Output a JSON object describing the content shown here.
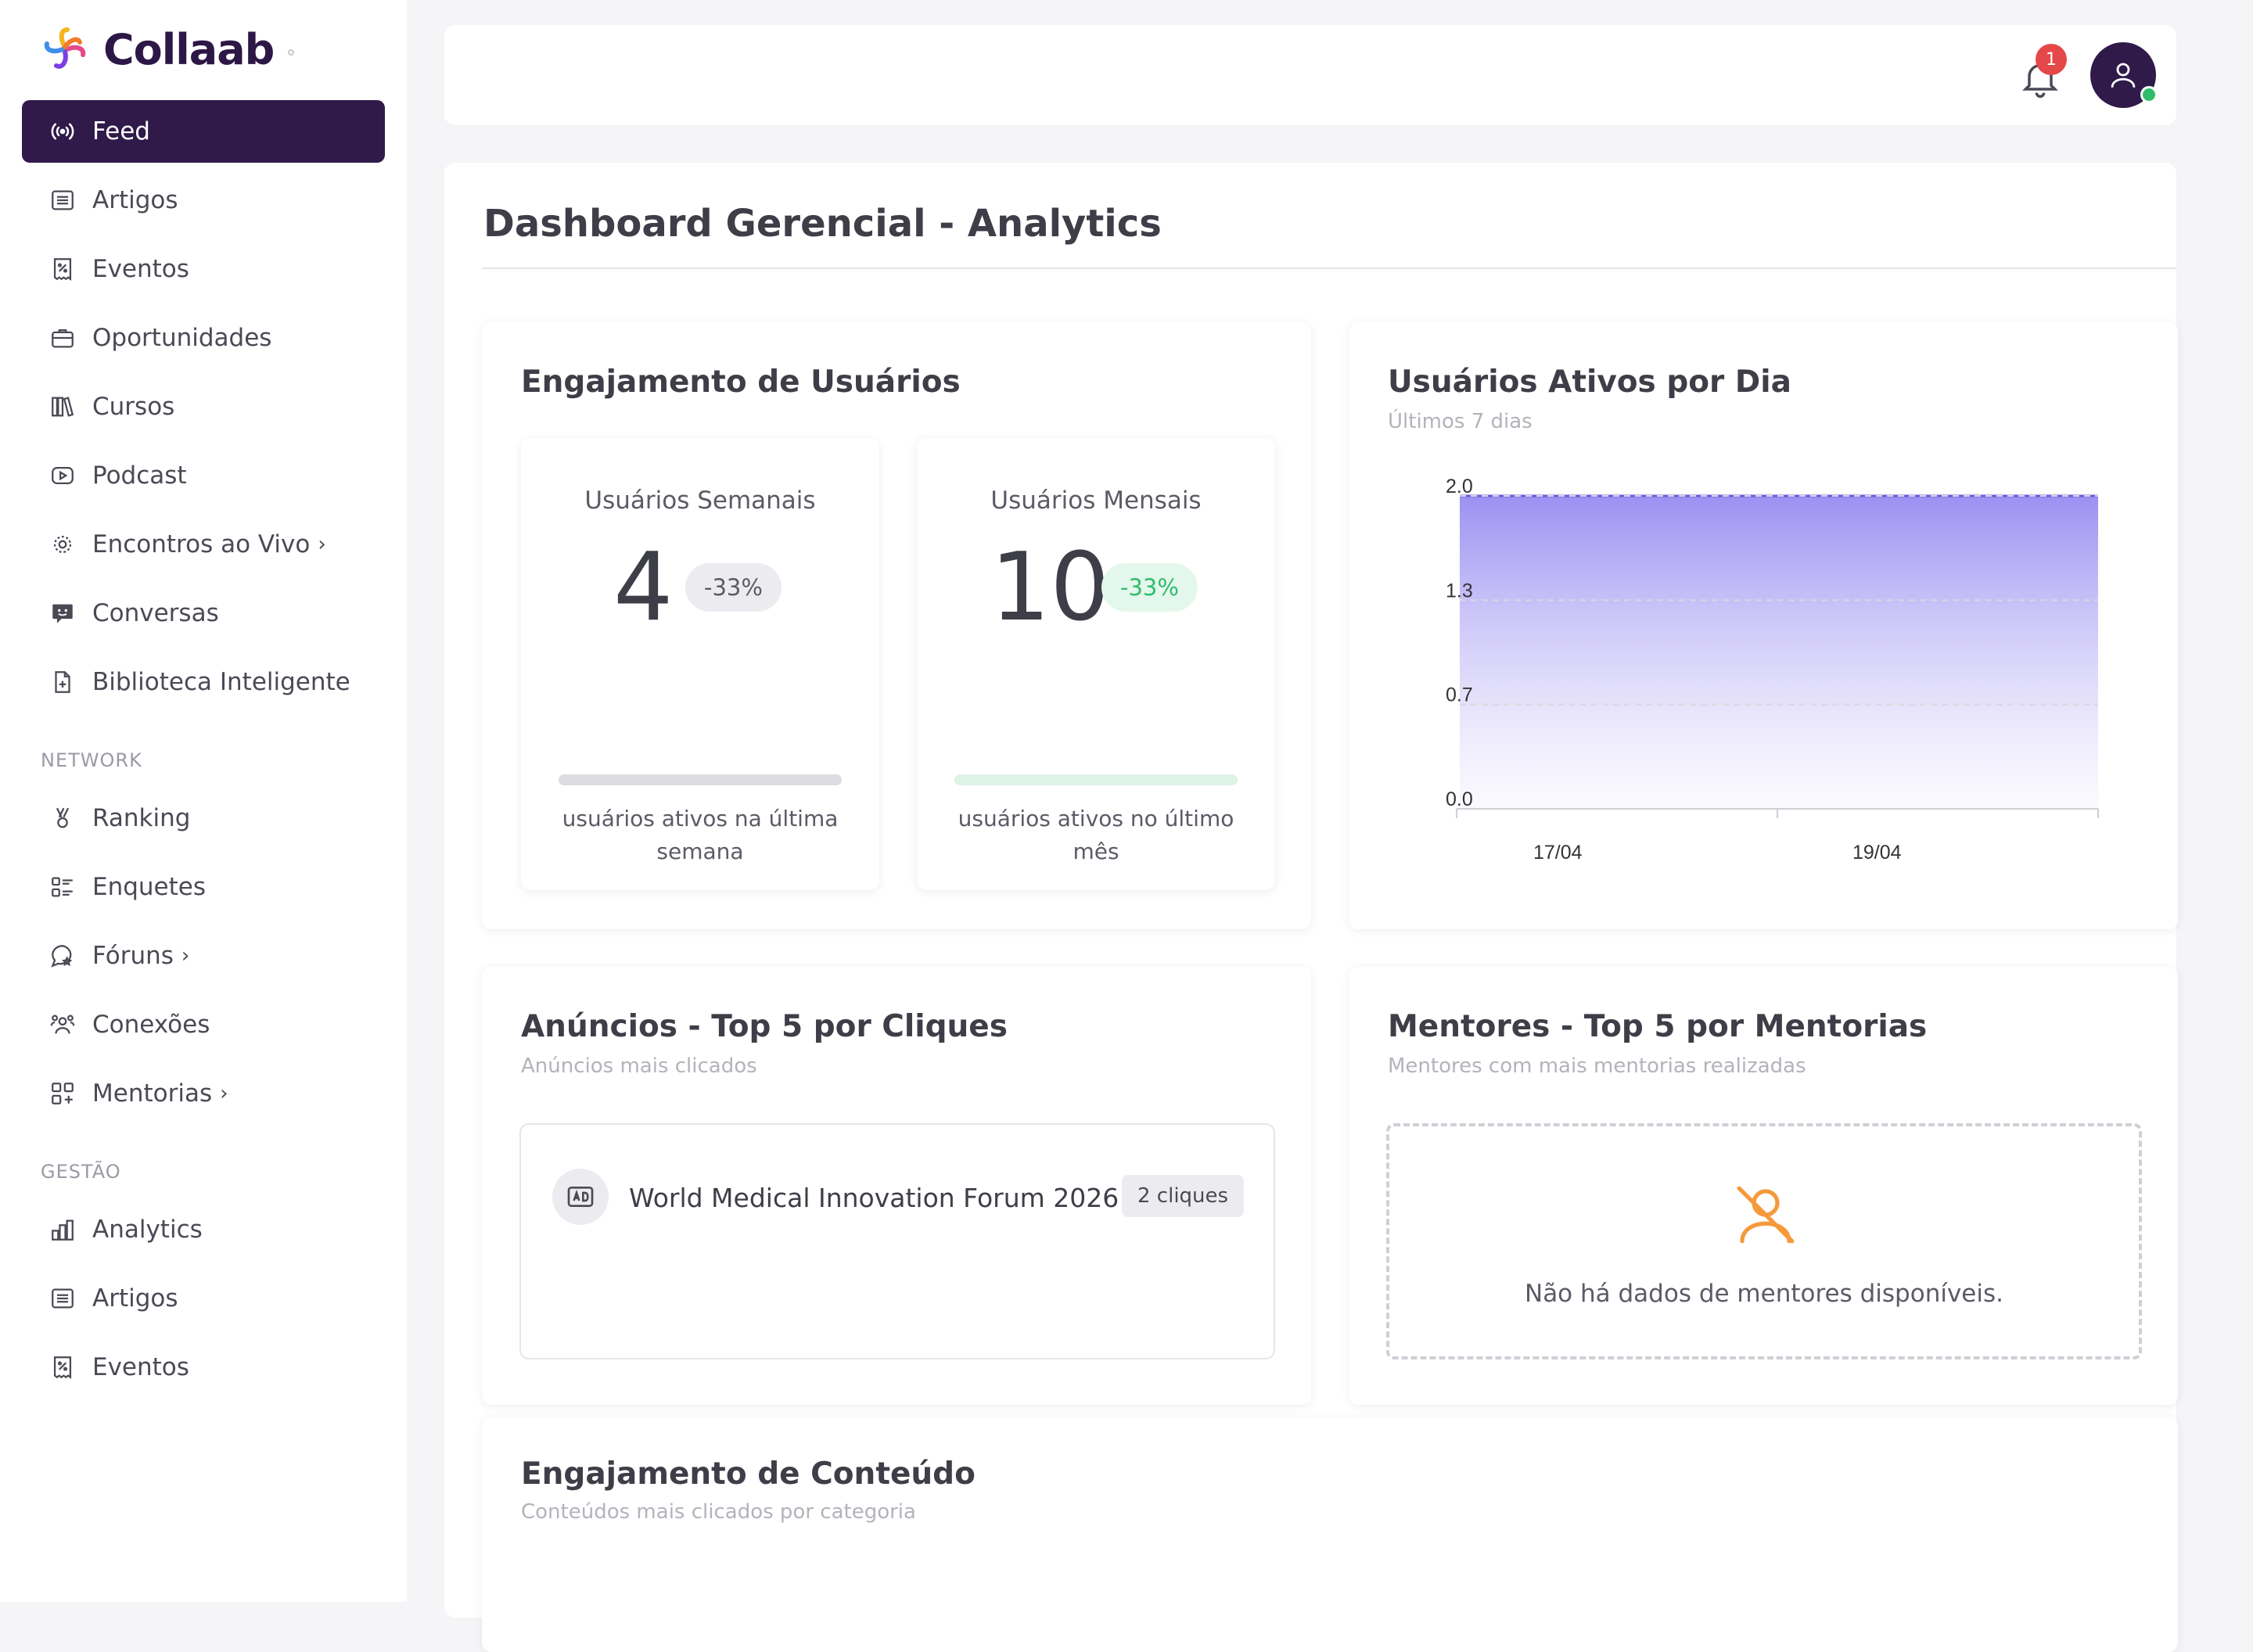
{
  "brand": {
    "name": "Collaab"
  },
  "sidebar": {
    "main_items": [
      {
        "label": "Feed",
        "icon": "broadcast-icon",
        "active": true
      },
      {
        "label": "Artigos",
        "icon": "article-icon"
      },
      {
        "label": "Eventos",
        "icon": "ticket-icon"
      },
      {
        "label": "Oportunidades",
        "icon": "briefcase-icon"
      },
      {
        "label": "Cursos",
        "icon": "books-icon"
      },
      {
        "label": "Podcast",
        "icon": "play-icon"
      },
      {
        "label": "Encontros ao Vivo",
        "icon": "live-icon",
        "chevron": "›"
      },
      {
        "label": "Conversas",
        "icon": "chat-icon"
      },
      {
        "label": "Biblioteca Inteligente",
        "icon": "file-plus-icon"
      }
    ],
    "network_label": "NETWORK",
    "network_items": [
      {
        "label": "Ranking",
        "icon": "ranking-icon"
      },
      {
        "label": "Enquetes",
        "icon": "poll-icon"
      },
      {
        "label": "Fóruns",
        "icon": "forum-icon",
        "chevron": "›"
      },
      {
        "label": "Conexões",
        "icon": "users-icon"
      },
      {
        "label": "Mentorias",
        "icon": "mentoring-icon",
        "chevron": "›"
      }
    ],
    "gestao_label": "GESTÃO",
    "gestao_items": [
      {
        "label": "Analytics",
        "icon": "bar-chart-icon"
      },
      {
        "label": "Artigos",
        "icon": "article-icon"
      },
      {
        "label": "Eventos",
        "icon": "ticket-icon"
      }
    ]
  },
  "topbar": {
    "notification_count": "1"
  },
  "page": {
    "title": "Dashboard Gerencial - Analytics"
  },
  "engagement": {
    "title": "Engajamento de Usuários",
    "weekly": {
      "label": "Usuários Semanais",
      "value": "4",
      "change": "-33%",
      "desc": "usuários ativos na última semana"
    },
    "monthly": {
      "label": "Usuários Mensais",
      "value": "10",
      "change": "-33%",
      "desc": "usuários ativos no último mês"
    }
  },
  "active_users": {
    "title": "Usuários Ativos por Dia",
    "subtitle": "Últimos 7 dias"
  },
  "chart_data": {
    "type": "area",
    "x": [
      "17/04",
      "19/04"
    ],
    "y_ticks": [
      "0.0",
      "0.7",
      "1.3",
      "2.0"
    ],
    "ylim": [
      0,
      2
    ],
    "series": [
      {
        "values": [
          2,
          2
        ]
      }
    ],
    "line_color": "#6a5ae0",
    "grid": "dashed-horizontal"
  },
  "ads": {
    "title": "Anúncios - Top 5 por Cliques",
    "subtitle": "Anúncios mais clicados",
    "items": [
      {
        "name": "World Medical Innovation Forum 2026",
        "clicks": "2 cliques"
      }
    ]
  },
  "mentors": {
    "title": "Mentores - Top 5 por Mentorias",
    "subtitle": "Mentores com mais mentorias realizadas",
    "empty": "Não há dados de mentores disponíveis."
  },
  "content": {
    "title": "Engajamento de Conteúdo",
    "subtitle": "Conteúdos mais clicados por categoria"
  },
  "colors": {
    "brand_dark": "#2f1a4a",
    "success": "#2fbd6b",
    "danger": "#e54848",
    "warning_icon": "#f59a3c"
  }
}
